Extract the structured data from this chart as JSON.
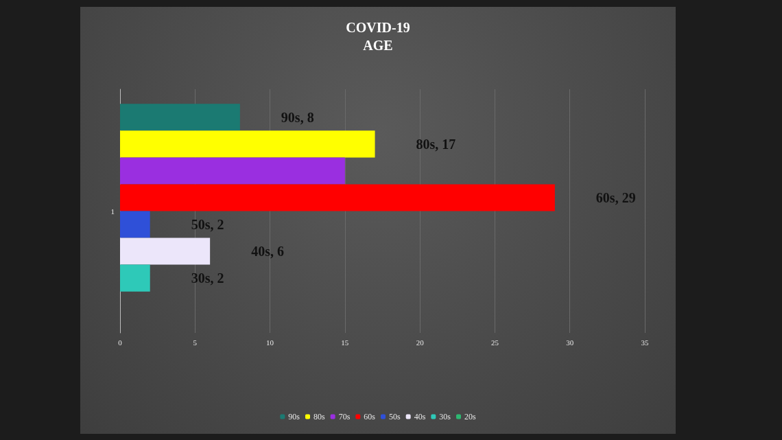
{
  "chart_data": {
    "type": "bar",
    "title": "COVID-19\nAGE",
    "orientation": "horizontal",
    "categories": [
      "1"
    ],
    "series": [
      {
        "name": "90s",
        "color": "#1b7a72",
        "values": [
          8
        ],
        "value_labels": [
          "90s, 8"
        ]
      },
      {
        "name": "80s",
        "color": "#ffff00",
        "values": [
          17
        ],
        "value_labels": [
          "80s, 17"
        ]
      },
      {
        "name": "70s",
        "color": "#9a2fe0",
        "values": [
          15
        ],
        "value_labels": [
          null
        ]
      },
      {
        "name": "60s",
        "color": "#ff0000",
        "values": [
          29
        ],
        "value_labels": [
          "60s, 29"
        ]
      },
      {
        "name": "50s",
        "color": "#2f50d8",
        "values": [
          2
        ],
        "value_labels": [
          "50s, 2"
        ]
      },
      {
        "name": "40s",
        "color": "#ece6fa",
        "values": [
          6
        ],
        "value_labels": [
          "40s, 6"
        ]
      },
      {
        "name": "30s",
        "color": "#2ec9b8",
        "values": [
          2
        ],
        "value_labels": [
          "30s, 2"
        ]
      },
      {
        "name": "20s",
        "color": "#2eb872",
        "values": [
          0
        ],
        "value_labels": [
          null
        ]
      }
    ],
    "xlim": [
      0,
      35
    ],
    "xticks": [
      0,
      5,
      10,
      15,
      20,
      25,
      30,
      35
    ],
    "grid": "x",
    "legend": "bottom"
  }
}
